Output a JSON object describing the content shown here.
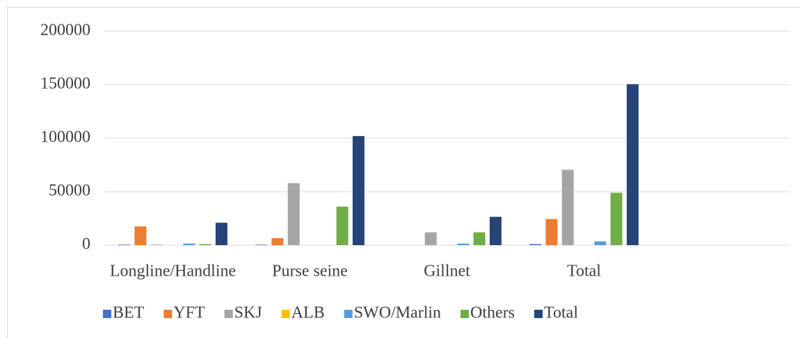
{
  "chart_data": {
    "type": "bar",
    "categories": [
      "Longline/Handline",
      "Purse seine",
      "Gillnet",
      "Total",
      null
    ],
    "series": [
      {
        "name": "BET",
        "color": "#4472c4",
        "values": [
          500,
          500,
          0,
          1000,
          null
        ]
      },
      {
        "name": "YFT",
        "color": "#ed7d31",
        "values": [
          17500,
          6500,
          0,
          24500,
          null
        ]
      },
      {
        "name": "SKJ",
        "color": "#a5a5a5",
        "values": [
          500,
          58000,
          12000,
          70500,
          null
        ]
      },
      {
        "name": "ALB",
        "color": "#ffc000",
        "values": [
          0,
          0,
          0,
          0,
          null
        ]
      },
      {
        "name": "SWO/Marlin",
        "color": "#5b9bd5",
        "values": [
          1500,
          0,
          1500,
          3500,
          null
        ]
      },
      {
        "name": "Others",
        "color": "#70ad47",
        "values": [
          1000,
          36000,
          12000,
          49000,
          null
        ]
      },
      {
        "name": "Total",
        "color": "#264478",
        "values": [
          21000,
          102000,
          26500,
          150500,
          null
        ]
      }
    ],
    "ylim": [
      0,
      200000
    ],
    "yticks": [
      0,
      50000,
      100000,
      150000,
      200000
    ],
    "grid": true,
    "legend": "bottom"
  }
}
